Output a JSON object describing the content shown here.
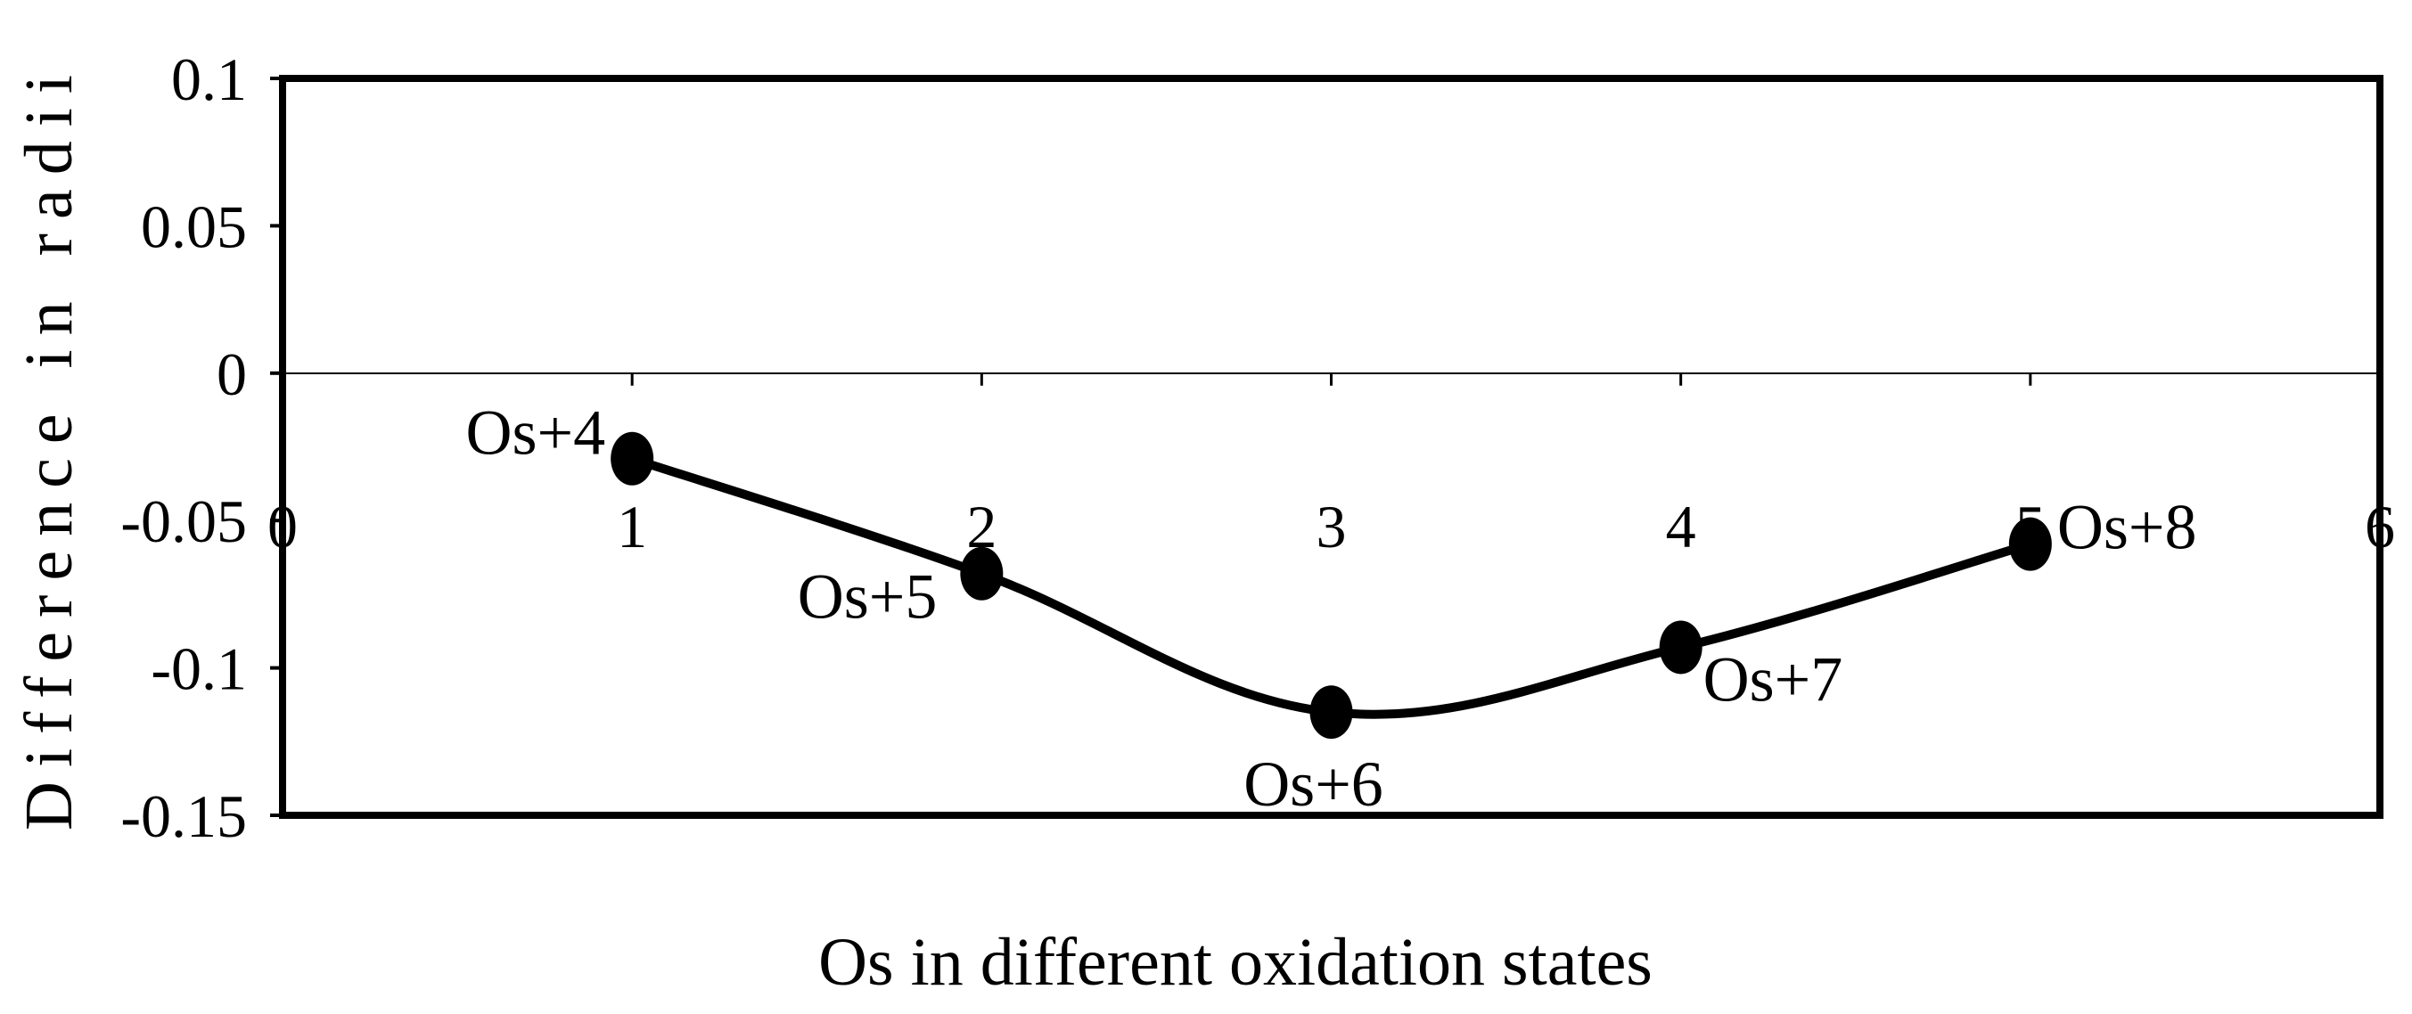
{
  "chart_data": {
    "type": "line",
    "title": "",
    "xlabel": "Os in different oxidation states",
    "ylabel": "Difference in radii",
    "xlim": [
      0,
      6
    ],
    "ylim": [
      -0.15,
      0.1
    ],
    "x_ticks": [
      "0",
      "1",
      "2",
      "3",
      "4",
      "5",
      "6"
    ],
    "y_ticks": [
      "0.1",
      "0.05",
      "0",
      "-0.05",
      "-0.1",
      "-0.15"
    ],
    "grid": false,
    "zero_line": true,
    "smooth": true,
    "series": [
      {
        "x": [
          1,
          2,
          3,
          4,
          5
        ],
        "y": [
          -0.029,
          -0.068,
          -0.115,
          -0.093,
          -0.058
        ],
        "point_labels": [
          "Os+4",
          "Os+5",
          "Os+6",
          "Os+7",
          "Os+8"
        ]
      }
    ],
    "colors": {
      "line": "#000000",
      "marker": "#000000",
      "frame": "#000000"
    }
  }
}
